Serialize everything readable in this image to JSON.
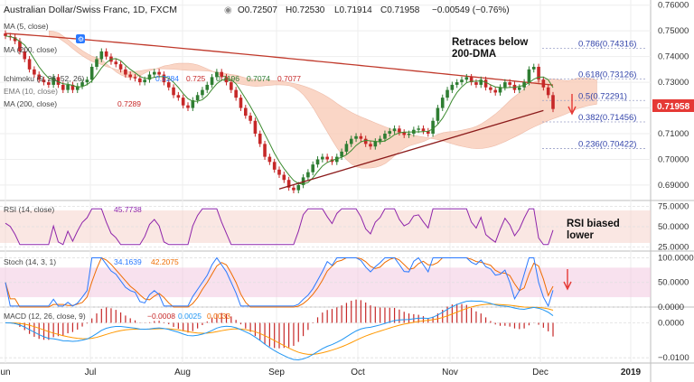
{
  "header": {
    "symbol_line": "Australian Dollar/Swiss Franc, 1D, FXCM",
    "open": "O0.72507",
    "high": "H0.72530",
    "low": "L0.71914",
    "close": "C0.71958",
    "change": "−0.00549 (−0.76%)"
  },
  "indicators": {
    "ma5": "MA (5, close)",
    "ma200_short": "MA (200, close)",
    "ichimoku": "Ichimoku (9, 26, 52, 26)",
    "ichi_v1": "0.7284",
    "ichi_v2": "0.725",
    "ichi_v3": "0.7196",
    "ichi_v4": "0.7074",
    "ichi_v5": "0.7077",
    "ema": "EMA (10, close)",
    "ma200": "MA (200, close)",
    "ma200_value": "0.7289",
    "rsi": "RSI (14, close)",
    "rsi_value": "45.7738",
    "stoch": "Stoch (14, 3, 1)",
    "stoch_k": "34.1639",
    "stoch_d": "42.2075",
    "macd": "MACD (12, 26, close, 9)",
    "macd_v1": "−0.0008",
    "macd_v2": "0.0025",
    "macd_v3": "0.0033"
  },
  "annotations": {
    "retrace_line1": "Retraces below",
    "retrace_line2": "200-DMA",
    "rsi_line1": "RSI biased",
    "rsi_line2": "lower"
  },
  "fib_levels": [
    {
      "label": "0.786(0.74316)",
      "value": 0.74316
    },
    {
      "label": "0.618(0.73126)",
      "value": 0.73126
    },
    {
      "label": "0.5(0.72291)",
      "value": 0.72291
    },
    {
      "label": "0.382(0.71456)",
      "value": 0.71456
    },
    {
      "label": "0.236(0.70422)",
      "value": 0.70422
    }
  ],
  "price_badge": "0.71958",
  "colors": {
    "bull": "#2e7d32",
    "bear": "#c62828",
    "ma200": "#c0392b",
    "ma5": "#3b8a2e",
    "cloud_bull": "#c8e6a8",
    "cloud_bear": "#f9c9b4",
    "fib": "#3344aa",
    "rsi": "#8e24aa",
    "stoch_k": "#2979ff",
    "stoch_d": "#ef6c00",
    "macd": "#2196f3",
    "signal": "#ff9800",
    "hist": "#c62828",
    "panel_band": "#f3c9e0"
  },
  "chart_data": [
    {
      "type": "candlestick",
      "title": "Australian Dollar/Swiss Franc, 1D, FXCM",
      "x_labels": [
        "un",
        "Jul",
        "Aug",
        "Sep",
        "Oct",
        "Nov",
        "Dec",
        "2019"
      ],
      "y_ticks": [
        0.76,
        0.75,
        0.74,
        0.73,
        0.72,
        0.71,
        0.7,
        0.69
      ],
      "y_tick_labels": [
        "0.76000",
        "0.75000",
        "0.74000",
        "0.73000",
        "0.72000",
        "0.71000",
        "0.70000",
        "0.69000"
      ],
      "ylim": [
        0.684,
        0.762
      ],
      "grid": true,
      "ohlc_close": [
        0.748,
        0.7475,
        0.746,
        0.742,
        0.739,
        0.735,
        0.733,
        0.731,
        0.73,
        0.729,
        0.732,
        0.729,
        0.727,
        0.729,
        0.727,
        0.7285,
        0.73,
        0.731,
        0.736,
        0.739,
        0.742,
        0.74,
        0.738,
        0.737,
        0.735,
        0.733,
        0.732,
        0.7315,
        0.73,
        0.731,
        0.733,
        0.734,
        0.733,
        0.73,
        0.728,
        0.725,
        0.724,
        0.721,
        0.72,
        0.723,
        0.725,
        0.727,
        0.729,
        0.732,
        0.734,
        0.732,
        0.73,
        0.727,
        0.724,
        0.72,
        0.717,
        0.715,
        0.71,
        0.706,
        0.701,
        0.699,
        0.696,
        0.694,
        0.692,
        0.689,
        0.688,
        0.69,
        0.693,
        0.695,
        0.698,
        0.7,
        0.701,
        0.7,
        0.699,
        0.701,
        0.703,
        0.706,
        0.708,
        0.709,
        0.708,
        0.706,
        0.705,
        0.707,
        0.708,
        0.71,
        0.711,
        0.712,
        0.7105,
        0.7095,
        0.71,
        0.7115,
        0.712,
        0.711,
        0.71,
        0.715,
        0.72,
        0.724,
        0.727,
        0.729,
        0.73,
        0.731,
        0.732,
        0.73,
        0.729,
        0.731,
        0.728,
        0.727,
        0.726,
        0.728,
        0.73,
        0.729,
        0.727,
        0.728,
        0.73,
        0.735,
        0.736,
        0.731,
        0.728,
        0.725,
        0.7196
      ],
      "series": [
        {
          "name": "MA (200, close)",
          "values_from": 0.749,
          "values_to": 0.7289
        },
        {
          "name": "MA (5, close)"
        }
      ],
      "fibonacci": [
        0.74316,
        0.73126,
        0.72291,
        0.71456,
        0.70422
      ],
      "trendline": [
        [
          57,
          0.6885
        ],
        [
          112,
          0.719
        ]
      ]
    },
    {
      "type": "line",
      "title": "RSI (14, close)",
      "series": [
        {
          "name": "RSI (14, close)",
          "last": 45.7738
        }
      ],
      "y_ticks": [
        75,
        50,
        25
      ],
      "y_tick_labels": [
        "75.0000",
        "50.0000",
        "25.0000"
      ],
      "ylim": [
        20,
        80
      ],
      "band": [
        30,
        70
      ]
    },
    {
      "type": "line",
      "title": "Stoch (14, 3, 1)",
      "series": [
        {
          "name": "K",
          "last": 34.1639
        },
        {
          "name": "D",
          "last": 42.2075
        }
      ],
      "y_ticks": [
        100,
        50,
        0
      ],
      "y_tick_labels": [
        "100.0000",
        "50.0000",
        "0.0000"
      ],
      "ylim": [
        0,
        110
      ],
      "band": [
        20,
        80
      ]
    },
    {
      "type": "bar",
      "title": "MACD (12, 26, close, 9)",
      "series": [
        {
          "name": "MACD",
          "last": -0.0008
        },
        {
          "name": "Signal",
          "last": 0.0025
        },
        {
          "name": "Histogram",
          "last": 0.0033
        }
      ],
      "y_ticks": [
        0.0,
        -0.01
      ],
      "y_tick_labels": [
        "0.0000",
        "−0.0100"
      ],
      "ylim": [
        -0.0115,
        0.004
      ]
    }
  ]
}
